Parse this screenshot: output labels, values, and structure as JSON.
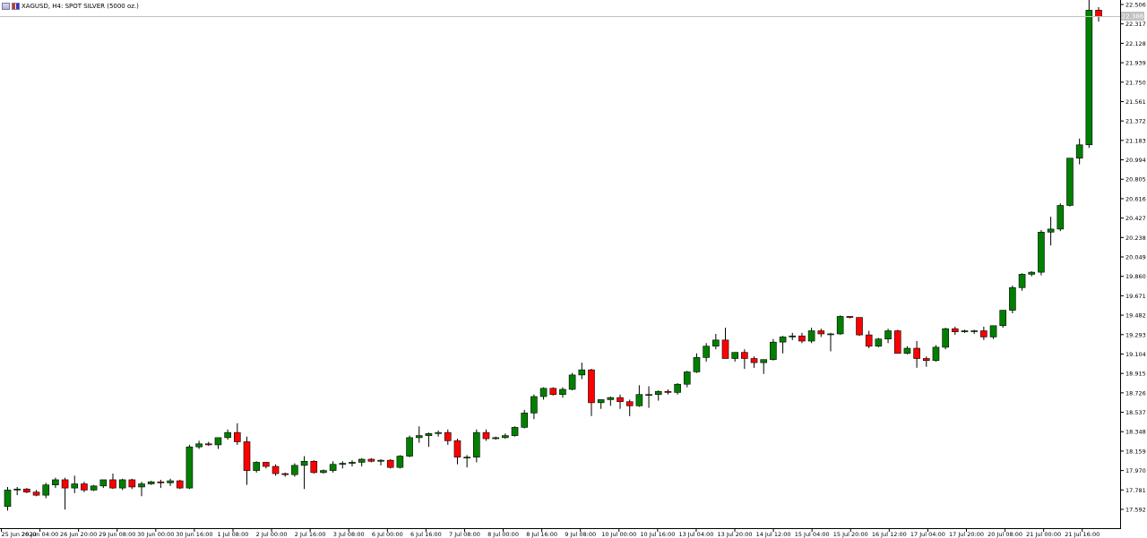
{
  "header": {
    "symbol_title": "XAGUSD, H4:  SPOT SILVER (5000 oz.)",
    "icons": [
      "chart-window-icon",
      "flag-icon"
    ]
  },
  "colors": {
    "background": "#ffffff",
    "bull": "#008000",
    "bear": "#ff0000",
    "wick": "#000000",
    "axis": "#000000",
    "bid_line": "#c0c0c0",
    "price_label_bg": "#c0c0c0"
  },
  "current_price_label": "22.388",
  "chart_data": {
    "type": "candlestick",
    "timeframe": "H4",
    "ylim": [
      17.48,
      22.55
    ],
    "y_ticks": [
      "22.506",
      "22.317",
      "22.128",
      "21.939",
      "21.750",
      "21.561",
      "21.372",
      "21.183",
      "20.994",
      "20.805",
      "20.616",
      "20.427",
      "20.238",
      "20.049",
      "19.860",
      "19.671",
      "19.482",
      "19.293",
      "19.104",
      "18.915",
      "18.726",
      "18.537",
      "18.348",
      "18.159",
      "17.970",
      "17.781",
      "17.592"
    ],
    "x_ticks": [
      "25 Jun 2020",
      "26 Jun 04:00",
      "26 Jun 20:00",
      "29 Jun 08:00",
      "30 Jun 00:00",
      "30 Jun 16:00",
      "1 Jul 08:00",
      "2 Jul 00:00",
      "2 Jul 16:00",
      "3 Jul 08:00",
      "6 Jul 00:00",
      "6 Jul 16:00",
      "7 Jul 08:00",
      "8 Jul 00:00",
      "8 Jul 16:00",
      "9 Jul 08:00",
      "10 Jul 00:00",
      "10 Jul 16:00",
      "13 Jul 04:00",
      "13 Jul 20:00",
      "14 Jul 12:00",
      "15 Jul 04:00",
      "15 Jul 20:00",
      "16 Jul 12:00",
      "17 Jul 04:00",
      "17 Jul 20:00",
      "20 Jul 08:00",
      "21 Jul 00:00",
      "21 Jul 16:00"
    ],
    "candles": [
      {
        "o": 17.62,
        "h": 17.81,
        "l": 17.58,
        "c": 17.78
      },
      {
        "o": 17.78,
        "h": 17.81,
        "l": 17.73,
        "c": 17.79
      },
      {
        "o": 17.79,
        "h": 17.8,
        "l": 17.75,
        "c": 17.76
      },
      {
        "o": 17.76,
        "h": 17.78,
        "l": 17.72,
        "c": 17.73
      },
      {
        "o": 17.73,
        "h": 17.85,
        "l": 17.7,
        "c": 17.83
      },
      {
        "o": 17.83,
        "h": 17.9,
        "l": 17.8,
        "c": 17.88
      },
      {
        "o": 17.88,
        "h": 17.9,
        "l": 17.59,
        "c": 17.8
      },
      {
        "o": 17.8,
        "h": 17.92,
        "l": 17.75,
        "c": 17.84
      },
      {
        "o": 17.84,
        "h": 17.86,
        "l": 17.76,
        "c": 17.78
      },
      {
        "o": 17.78,
        "h": 17.83,
        "l": 17.77,
        "c": 17.82
      },
      {
        "o": 17.82,
        "h": 17.88,
        "l": 17.8,
        "c": 17.88
      },
      {
        "o": 17.88,
        "h": 17.94,
        "l": 17.79,
        "c": 17.8
      },
      {
        "o": 17.8,
        "h": 17.89,
        "l": 17.78,
        "c": 17.88
      },
      {
        "o": 17.88,
        "h": 17.89,
        "l": 17.79,
        "c": 17.81
      },
      {
        "o": 17.81,
        "h": 17.86,
        "l": 17.72,
        "c": 17.84
      },
      {
        "o": 17.84,
        "h": 17.87,
        "l": 17.83,
        "c": 17.86
      },
      {
        "o": 17.86,
        "h": 17.88,
        "l": 17.8,
        "c": 17.85
      },
      {
        "o": 17.85,
        "h": 17.89,
        "l": 17.82,
        "c": 17.87
      },
      {
        "o": 17.87,
        "h": 17.88,
        "l": 17.79,
        "c": 17.8
      },
      {
        "o": 17.8,
        "h": 18.22,
        "l": 17.79,
        "c": 18.2
      },
      {
        "o": 18.2,
        "h": 18.26,
        "l": 18.18,
        "c": 18.23
      },
      {
        "o": 18.23,
        "h": 18.25,
        "l": 18.21,
        "c": 18.22
      },
      {
        "o": 18.22,
        "h": 18.28,
        "l": 18.18,
        "c": 18.29
      },
      {
        "o": 18.29,
        "h": 18.37,
        "l": 18.27,
        "c": 18.34
      },
      {
        "o": 18.34,
        "h": 18.43,
        "l": 18.22,
        "c": 18.25
      },
      {
        "o": 18.25,
        "h": 18.3,
        "l": 17.83,
        "c": 17.97
      },
      {
        "o": 17.97,
        "h": 18.06,
        "l": 17.95,
        "c": 18.05
      },
      {
        "o": 18.05,
        "h": 18.05,
        "l": 17.99,
        "c": 18.01
      },
      {
        "o": 18.01,
        "h": 18.03,
        "l": 17.92,
        "c": 17.94
      },
      {
        "o": 17.94,
        "h": 17.95,
        "l": 17.91,
        "c": 17.93
      },
      {
        "o": 17.93,
        "h": 18.04,
        "l": 17.91,
        "c": 18.02
      },
      {
        "o": 18.02,
        "h": 18.11,
        "l": 17.79,
        "c": 18.06
      },
      {
        "o": 18.06,
        "h": 18.07,
        "l": 17.94,
        "c": 17.95
      },
      {
        "o": 17.95,
        "h": 17.98,
        "l": 17.94,
        "c": 17.97
      },
      {
        "o": 17.97,
        "h": 18.06,
        "l": 17.95,
        "c": 18.03
      },
      {
        "o": 18.03,
        "h": 18.06,
        "l": 17.99,
        "c": 18.04
      },
      {
        "o": 18.04,
        "h": 18.07,
        "l": 18.01,
        "c": 18.05
      },
      {
        "o": 18.05,
        "h": 18.09,
        "l": 18.01,
        "c": 18.08
      },
      {
        "o": 18.08,
        "h": 18.09,
        "l": 18.05,
        "c": 18.06
      },
      {
        "o": 18.06,
        "h": 18.08,
        "l": 18.02,
        "c": 18.07
      },
      {
        "o": 18.07,
        "h": 18.08,
        "l": 17.99,
        "c": 18.0
      },
      {
        "o": 18.0,
        "h": 18.12,
        "l": 17.99,
        "c": 18.11
      },
      {
        "o": 18.11,
        "h": 18.31,
        "l": 18.1,
        "c": 18.29
      },
      {
        "o": 18.29,
        "h": 18.4,
        "l": 18.24,
        "c": 18.31
      },
      {
        "o": 18.31,
        "h": 18.34,
        "l": 18.2,
        "c": 18.33
      },
      {
        "o": 18.33,
        "h": 18.36,
        "l": 18.3,
        "c": 18.34
      },
      {
        "o": 18.34,
        "h": 18.37,
        "l": 18.22,
        "c": 18.26
      },
      {
        "o": 18.26,
        "h": 18.28,
        "l": 18.03,
        "c": 18.1
      },
      {
        "o": 18.1,
        "h": 18.12,
        "l": 18.0,
        "c": 18.1
      },
      {
        "o": 18.1,
        "h": 18.37,
        "l": 18.05,
        "c": 18.34
      },
      {
        "o": 18.34,
        "h": 18.37,
        "l": 18.26,
        "c": 18.28
      },
      {
        "o": 18.28,
        "h": 18.3,
        "l": 18.27,
        "c": 18.29
      },
      {
        "o": 18.29,
        "h": 18.33,
        "l": 18.28,
        "c": 18.31
      },
      {
        "o": 18.31,
        "h": 18.4,
        "l": 18.3,
        "c": 18.39
      },
      {
        "o": 18.39,
        "h": 18.56,
        "l": 18.38,
        "c": 18.53
      },
      {
        "o": 18.53,
        "h": 18.71,
        "l": 18.47,
        "c": 18.69
      },
      {
        "o": 18.69,
        "h": 18.78,
        "l": 18.66,
        "c": 18.77
      },
      {
        "o": 18.77,
        "h": 18.78,
        "l": 18.7,
        "c": 18.71
      },
      {
        "o": 18.71,
        "h": 18.78,
        "l": 18.68,
        "c": 18.76
      },
      {
        "o": 18.76,
        "h": 18.92,
        "l": 18.75,
        "c": 18.9
      },
      {
        "o": 18.9,
        "h": 19.02,
        "l": 18.86,
        "c": 18.95
      },
      {
        "o": 18.95,
        "h": 18.96,
        "l": 18.5,
        "c": 18.63
      },
      {
        "o": 18.63,
        "h": 18.66,
        "l": 18.57,
        "c": 18.66
      },
      {
        "o": 18.66,
        "h": 18.69,
        "l": 18.6,
        "c": 18.68
      },
      {
        "o": 18.68,
        "h": 18.71,
        "l": 18.57,
        "c": 18.64
      },
      {
        "o": 18.64,
        "h": 18.66,
        "l": 18.5,
        "c": 18.6
      },
      {
        "o": 18.6,
        "h": 18.8,
        "l": 18.59,
        "c": 18.71
      },
      {
        "o": 18.71,
        "h": 18.79,
        "l": 18.58,
        "c": 18.71
      },
      {
        "o": 18.71,
        "h": 18.75,
        "l": 18.65,
        "c": 18.74
      },
      {
        "o": 18.74,
        "h": 18.76,
        "l": 18.71,
        "c": 18.73
      },
      {
        "o": 18.73,
        "h": 18.82,
        "l": 18.71,
        "c": 18.81
      },
      {
        "o": 18.81,
        "h": 18.94,
        "l": 18.78,
        "c": 18.93
      },
      {
        "o": 18.93,
        "h": 19.11,
        "l": 18.92,
        "c": 19.07
      },
      {
        "o": 19.07,
        "h": 19.21,
        "l": 19.03,
        "c": 19.18
      },
      {
        "o": 19.18,
        "h": 19.3,
        "l": 19.15,
        "c": 19.24
      },
      {
        "o": 19.24,
        "h": 19.36,
        "l": 19.06,
        "c": 19.06
      },
      {
        "o": 19.06,
        "h": 19.11,
        "l": 19.03,
        "c": 19.12
      },
      {
        "o": 19.12,
        "h": 19.15,
        "l": 18.96,
        "c": 19.06
      },
      {
        "o": 19.06,
        "h": 19.08,
        "l": 18.97,
        "c": 19.02
      },
      {
        "o": 19.02,
        "h": 19.05,
        "l": 18.91,
        "c": 19.05
      },
      {
        "o": 19.05,
        "h": 19.25,
        "l": 19.04,
        "c": 19.22
      },
      {
        "o": 19.22,
        "h": 19.28,
        "l": 19.11,
        "c": 19.27
      },
      {
        "o": 19.27,
        "h": 19.31,
        "l": 19.24,
        "c": 19.28
      },
      {
        "o": 19.28,
        "h": 19.31,
        "l": 19.21,
        "c": 19.23
      },
      {
        "o": 19.23,
        "h": 19.36,
        "l": 19.21,
        "c": 19.33
      },
      {
        "o": 19.33,
        "h": 19.35,
        "l": 19.27,
        "c": 19.3
      },
      {
        "o": 19.3,
        "h": 19.31,
        "l": 19.13,
        "c": 19.3
      },
      {
        "o": 19.3,
        "h": 19.48,
        "l": 19.29,
        "c": 19.47
      },
      {
        "o": 19.47,
        "h": 19.47,
        "l": 19.45,
        "c": 19.46
      },
      {
        "o": 19.46,
        "h": 19.46,
        "l": 19.28,
        "c": 19.29
      },
      {
        "o": 19.29,
        "h": 19.33,
        "l": 19.16,
        "c": 19.18
      },
      {
        "o": 19.18,
        "h": 19.26,
        "l": 19.17,
        "c": 19.25
      },
      {
        "o": 19.25,
        "h": 19.35,
        "l": 19.21,
        "c": 19.33
      },
      {
        "o": 19.33,
        "h": 19.34,
        "l": 19.11,
        "c": 19.11
      },
      {
        "o": 19.11,
        "h": 19.18,
        "l": 19.1,
        "c": 19.16
      },
      {
        "o": 19.16,
        "h": 19.23,
        "l": 18.97,
        "c": 19.06
      },
      {
        "o": 19.06,
        "h": 19.08,
        "l": 18.98,
        "c": 19.04
      },
      {
        "o": 19.04,
        "h": 19.19,
        "l": 19.03,
        "c": 19.17
      },
      {
        "o": 19.17,
        "h": 19.36,
        "l": 19.15,
        "c": 19.35
      },
      {
        "o": 19.35,
        "h": 19.37,
        "l": 19.29,
        "c": 19.32
      },
      {
        "o": 19.32,
        "h": 19.34,
        "l": 19.31,
        "c": 19.33
      },
      {
        "o": 19.33,
        "h": 19.34,
        "l": 19.3,
        "c": 19.33
      },
      {
        "o": 19.33,
        "h": 19.37,
        "l": 19.24,
        "c": 19.27
      },
      {
        "o": 19.27,
        "h": 19.37,
        "l": 19.25,
        "c": 19.38
      },
      {
        "o": 19.38,
        "h": 19.53,
        "l": 19.36,
        "c": 19.53
      },
      {
        "o": 19.53,
        "h": 19.77,
        "l": 19.5,
        "c": 19.75
      },
      {
        "o": 19.75,
        "h": 19.89,
        "l": 19.72,
        "c": 19.88
      },
      {
        "o": 19.88,
        "h": 19.91,
        "l": 19.86,
        "c": 19.9
      },
      {
        "o": 19.9,
        "h": 20.31,
        "l": 19.87,
        "c": 20.29
      },
      {
        "o": 20.29,
        "h": 20.44,
        "l": 20.16,
        "c": 20.32
      },
      {
        "o": 20.32,
        "h": 20.57,
        "l": 20.3,
        "c": 20.55
      },
      {
        "o": 20.55,
        "h": 21.01,
        "l": 20.54,
        "c": 21.01
      },
      {
        "o": 21.01,
        "h": 21.2,
        "l": 20.95,
        "c": 21.14
      },
      {
        "o": 21.14,
        "h": 22.55,
        "l": 21.11,
        "c": 22.45
      },
      {
        "o": 22.45,
        "h": 22.48,
        "l": 22.34,
        "c": 22.39
      }
    ]
  }
}
